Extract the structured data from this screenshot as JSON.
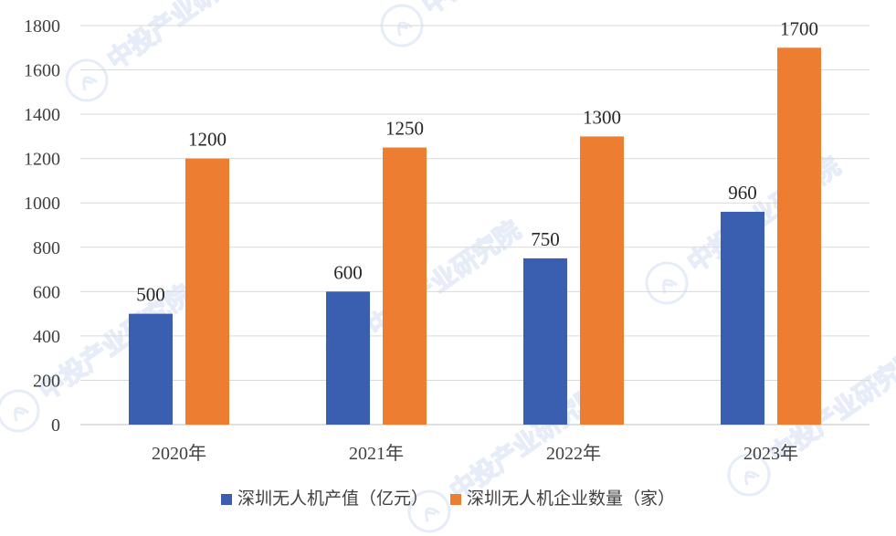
{
  "watermark": {
    "text": "中投产业研究院",
    "color": "#b8c9ec"
  },
  "chart_data": {
    "type": "bar",
    "categories": [
      "2020年",
      "2021年",
      "2022年",
      "2023年"
    ],
    "series": [
      {
        "name": "深圳无人机产值（亿元）",
        "values": [
          500,
          600,
          750,
          960
        ],
        "color": "#3a5fb0"
      },
      {
        "name": "深圳无人机企业数量（家）",
        "values": [
          1200,
          1250,
          1300,
          1700
        ],
        "color": "#ed7d31"
      }
    ],
    "ylim": [
      0,
      1800
    ],
    "yticks": [
      0,
      200,
      400,
      600,
      800,
      1000,
      1200,
      1400,
      1600,
      1800
    ],
    "grid": true,
    "legend_position": "bottom",
    "title": "",
    "xlabel": "",
    "ylabel": ""
  }
}
